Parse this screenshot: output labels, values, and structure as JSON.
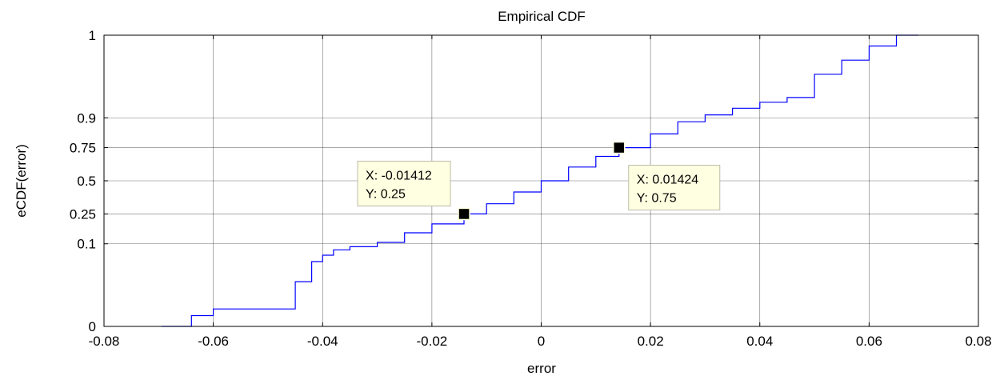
{
  "chart_data": {
    "type": "line",
    "title": "Empirical CDF",
    "xlabel": "error",
    "ylabel": "eCDF(error)",
    "xlim": [
      -0.08,
      0.08
    ],
    "ylim": [
      0,
      1
    ],
    "y_scale": "probit (normal probability axis)",
    "grid": true,
    "x_ticks": [
      -0.08,
      -0.06,
      -0.04,
      -0.02,
      0,
      0.02,
      0.04,
      0.06,
      0.08
    ],
    "x_tick_labels": [
      "-0.08",
      "-0.06",
      "-0.04",
      "-0.02",
      "0",
      "0.02",
      "0.04",
      "0.06",
      "0.08"
    ],
    "y_ticks": [
      0,
      0.1,
      0.25,
      0.5,
      0.75,
      0.9,
      1
    ],
    "y_tick_labels": [
      "0",
      "0.1",
      "0.25",
      "0.5",
      "0.75",
      "0.9",
      "1"
    ],
    "series_color": "#0000ff",
    "series": [
      {
        "x": [
          -0.0695,
          -0.064,
          -0.06,
          -0.055,
          -0.05,
          -0.047,
          -0.045,
          -0.042,
          -0.04,
          -0.038,
          -0.035,
          -0.03,
          -0.025,
          -0.02,
          -0.01412,
          -0.01,
          -0.005,
          0,
          0.005,
          0.01,
          0.01424,
          0.02,
          0.025,
          0.03,
          0.035,
          0.04,
          0.045,
          0.05,
          0.055,
          0.06,
          0.065,
          0.069
        ],
        "y": [
          0.0015,
          0.003,
          0.0045,
          0.0045,
          0.0045,
          0.0045,
          0.02,
          0.05,
          0.065,
          0.08,
          0.09,
          0.105,
          0.145,
          0.19,
          0.25,
          0.32,
          0.41,
          0.5,
          0.61,
          0.69,
          0.75,
          0.83,
          0.885,
          0.91,
          0.93,
          0.945,
          0.955,
          0.985,
          0.993,
          0.997,
          0.999,
          1
        ]
      }
    ],
    "datatips": [
      {
        "x": -0.01412,
        "y": 0.25,
        "x_text": "X: -0.01412",
        "y_text": "Y: 0.25"
      },
      {
        "x": 0.01424,
        "y": 0.75,
        "x_text": "X: 0.01424",
        "y_text": "Y: 0.75"
      }
    ],
    "datatip_bg": "#ffffe1"
  }
}
